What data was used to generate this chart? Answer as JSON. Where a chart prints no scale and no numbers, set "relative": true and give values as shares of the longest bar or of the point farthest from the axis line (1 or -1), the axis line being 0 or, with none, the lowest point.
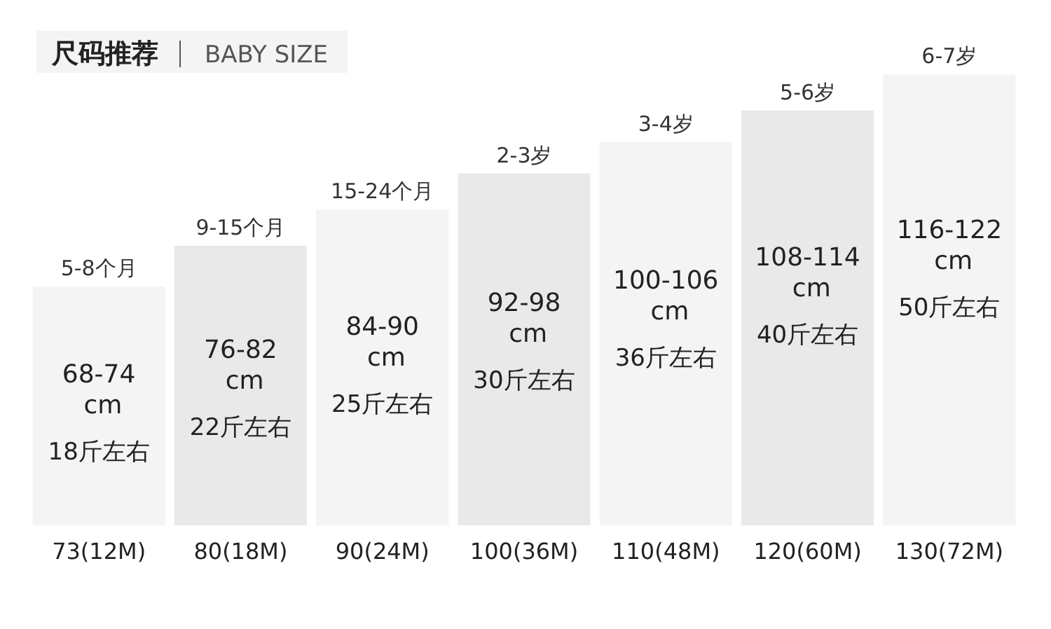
{
  "chart_data": {
    "type": "bar",
    "title": "尺码推荐",
    "subtitle": "BABY SIZE",
    "relative": true,
    "categories": [
      "73(12M)",
      "80(18M)",
      "90(24M)",
      "100(36M)",
      "110(48M)",
      "120(60M)",
      "130(72M)"
    ],
    "values": [
      0.53,
      0.62,
      0.7,
      0.78,
      0.85,
      0.92,
      1
    ],
    "colors": [
      "#f4f4f4",
      "#e9e9e9",
      "#f4f4f4",
      "#e9e9e9",
      "#f4f4f4",
      "#e9e9e9",
      "#f4f4f4"
    ],
    "annotations": [
      {
        "text": "5-8个月",
        "x": "73(12M)",
        "y": 0.53
      },
      {
        "text": "9-15个月",
        "x": "80(18M)",
        "y": 0.62
      },
      {
        "text": "15-24个月",
        "x": "90(24M)",
        "y": 0.7
      },
      {
        "text": "2-3岁",
        "x": "100(36M)",
        "y": 0.78
      },
      {
        "text": "3-4岁",
        "x": "110(48M)",
        "y": 0.85
      },
      {
        "text": "5-6岁",
        "x": "120(60M)",
        "y": 0.92
      },
      {
        "text": "6-7岁",
        "x": "130(72M)",
        "y": 1
      },
      "68-74 cm",
      "18斤左右",
      "76-82 cm",
      "22斤左右",
      "84-90 cm",
      "25斤左右",
      "92-98 cm",
      "30斤左右",
      "100-106 cm",
      "36斤左右",
      "108-114 cm",
      "40斤左右",
      "116-122 cm",
      "50斤左右"
    ]
  }
}
